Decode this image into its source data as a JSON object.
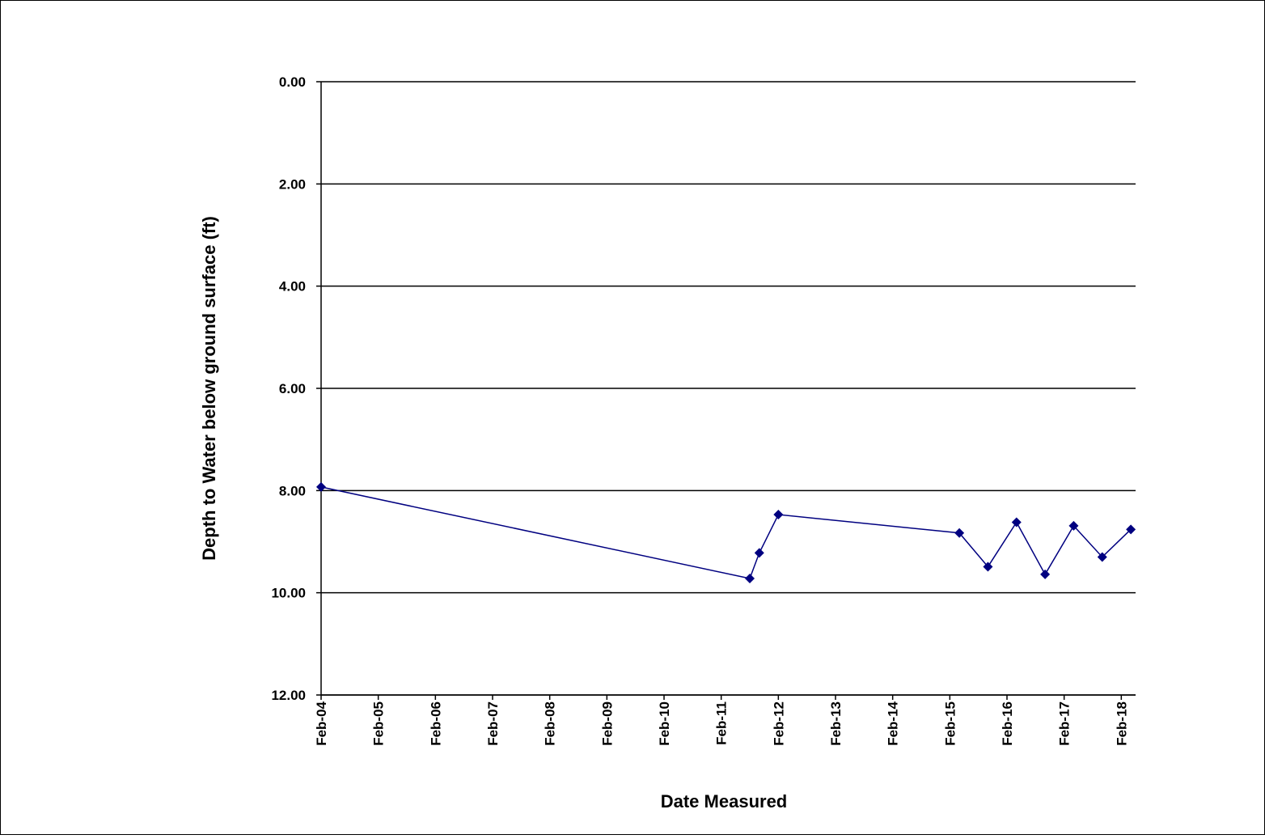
{
  "chart_data": {
    "type": "line",
    "xlabel": "Date Measured",
    "ylabel": "Depth to Water below ground surface (ft)",
    "x": [
      "2004-02",
      "2011-08",
      "2011-10",
      "2012-02",
      "2015-04",
      "2015-10",
      "2016-04",
      "2016-10",
      "2017-04",
      "2017-10",
      "2018-04"
    ],
    "series": [
      {
        "color": "#000080",
        "values": [
          7.93,
          9.72,
          9.22,
          8.47,
          8.83,
          9.49,
          8.62,
          9.64,
          8.69,
          9.3,
          8.76
        ]
      }
    ],
    "xlim": [
      "2004-02",
      "2018-05"
    ],
    "xticks": [
      {
        "value": "2004-02",
        "label": "Feb-04"
      },
      {
        "value": "2005-02",
        "label": "Feb-05"
      },
      {
        "value": "2006-02",
        "label": "Feb-06"
      },
      {
        "value": "2007-02",
        "label": "Feb-07"
      },
      {
        "value": "2008-02",
        "label": "Feb-08"
      },
      {
        "value": "2009-02",
        "label": "Feb-09"
      },
      {
        "value": "2010-02",
        "label": "Feb-10"
      },
      {
        "value": "2011-02",
        "label": "Feb-11"
      },
      {
        "value": "2012-02",
        "label": "Feb-12"
      },
      {
        "value": "2013-02",
        "label": "Feb-13"
      },
      {
        "value": "2014-02",
        "label": "Feb-14"
      },
      {
        "value": "2015-02",
        "label": "Feb-15"
      },
      {
        "value": "2016-02",
        "label": "Feb-16"
      },
      {
        "value": "2017-02",
        "label": "Feb-17"
      },
      {
        "value": "2018-02",
        "label": "Feb-18"
      }
    ],
    "ylim": [
      12,
      0
    ],
    "yticks": [
      {
        "value": 0,
        "label": "0.00"
      },
      {
        "value": 2,
        "label": "2.00"
      },
      {
        "value": 4,
        "label": "4.00"
      },
      {
        "value": 6,
        "label": "6.00"
      },
      {
        "value": 8,
        "label": "8.00"
      },
      {
        "value": 10,
        "label": "10.00"
      },
      {
        "value": 12,
        "label": "12.00"
      }
    ],
    "grid": true
  }
}
